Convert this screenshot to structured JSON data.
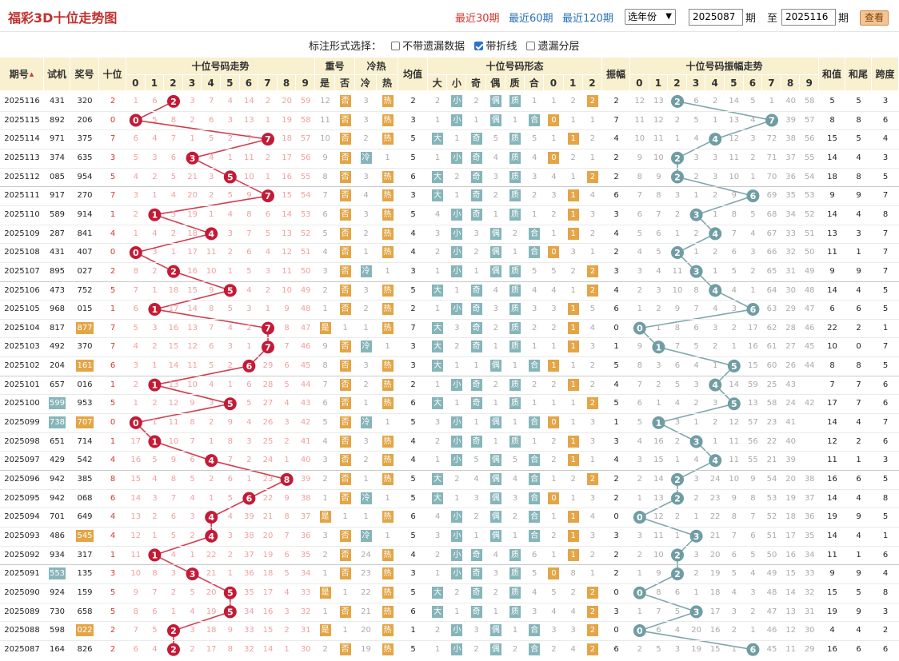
{
  "header": {
    "title": "福彩3D十位走势图",
    "nav": [
      "最近30期",
      "最近60期",
      "最近120期"
    ],
    "year_select": "选年份",
    "from": "2025087",
    "from_suffix": "期",
    "to_prefix": "至",
    "to": "2025116",
    "to_suffix": "期",
    "view_button": "查看"
  },
  "options": {
    "label": "标注形式选择：",
    "items": [
      {
        "label": "不带遗漏数据",
        "checked": false
      },
      {
        "label": "带折线",
        "checked": true
      },
      {
        "label": "遗漏分层",
        "checked": false
      }
    ]
  },
  "columns": {
    "issue": "期号",
    "trial": "试机",
    "prize": "奖号",
    "tens": "十位",
    "trend": "十位号码走势",
    "repeat": "重号",
    "repeat_yes": "是",
    "repeat_no": "否",
    "coldhot": "冷热",
    "cold": "冷",
    "hot": "热",
    "avg": "均值",
    "form": "十位号码形态",
    "big": "大",
    "small": "小",
    "odd": "奇",
    "even": "偶",
    "prime": "质",
    "composite": "合",
    "amp": "振幅",
    "amptrend": "十位号码振幅走势",
    "sum": "和值",
    "tail": "和尾",
    "span": "跨度"
  },
  "colors": {
    "ball_red": "#c41a36",
    "ball_teal": "#6f9da3",
    "line_red": "#d23c4e",
    "line_teal": "#7fa6ab",
    "header_bg": "#f8f0cf"
  },
  "trend_digits": [
    "0",
    "1",
    "2",
    "3",
    "4",
    "5",
    "6",
    "7",
    "8",
    "9"
  ],
  "rows": [
    [
      "2025116",
      "431",
      "320",
      "2",
      "1 6 ● 3 7 4 14 2 20 59",
      "12 否",
      "3 热",
      "2",
      "2 小 2 偶 质 1 1 2 2",
      "2",
      "12 13 ● 6 2 14 5 1 40 58",
      "5",
      "5",
      "3",
      "",
      ""
    ],
    [
      "2025115",
      "892",
      "206",
      "0",
      "● 5 8 2 6 3 13 1 19 58",
      "11 否",
      "3 热",
      "3",
      "1 小 1 偶 1 合 0 1 1",
      "7",
      "11 12 2 5 1 13 4 ● 39 57",
      "8",
      "8",
      "6",
      "",
      ""
    ],
    [
      "2025114",
      "971",
      "375",
      "7",
      "6 4 7 1 5 2 7 ● 18 57",
      "10 否",
      "2 热",
      "5",
      "大 1 奇 5 质 5 1 1 2",
      "4",
      "10 11 1 4 ● 12 3 72 38 56",
      "15",
      "5",
      "4",
      "",
      ""
    ],
    [
      "2025113",
      "374",
      "635",
      "3",
      "5 3 6 ● 4 1 11 2 17 56",
      "9 否",
      "冷 1",
      "5",
      "1 小 奇 4 质 4 0 2 1",
      "2",
      "9 10 ● 3 3 11 2 71 37 55",
      "14",
      "4",
      "3",
      "",
      ""
    ],
    [
      "2025112",
      "085",
      "954",
      "5",
      "4 2 5 21 3 ● 10 1 16 55",
      "8 否",
      "3 热",
      "6",
      "大 2 奇 3 质 3 4 1 2",
      "2",
      "8 9 ● 2 3 10 1 70 36 54",
      "18",
      "8",
      "5",
      "",
      ""
    ],
    [
      "2025111",
      "917",
      "270",
      "7",
      "3 1 4 20 2 5 9 ● 15 54",
      "7 否",
      "4 热",
      "3",
      "大 1 奇 2 质 2 3 1 4",
      "6",
      "7 8 3 1 2 9 ● 69 35 53",
      "9",
      "9",
      "7",
      "",
      ""
    ],
    [
      "2025110",
      "589",
      "914",
      "1",
      "2 ● 3 19 1 4 8 6 14 53",
      "6 否",
      "3 热",
      "5",
      "4 小 奇 1 质 1 2 1 3",
      "3",
      "6 7 2 ● 1 8 5 68 34 52",
      "14",
      "4",
      "8",
      "",
      ""
    ],
    [
      "2025109",
      "287",
      "841",
      "4",
      "1 4 2 18 ● 3 7 5 13 52",
      "5 否",
      "2 热",
      "4",
      "3 小 3 偶 2 合 1 1 2",
      "4",
      "5 6 1 2 ● 7 4 67 33 51",
      "13",
      "3",
      "7",
      "",
      ""
    ],
    [
      "2025108",
      "431",
      "407",
      "0",
      "● 3 1 17 11 2 6 4 12 51",
      "4 否",
      "1 热",
      "4",
      "2 小 2 偶 1 合 0 3 1",
      "2",
      "4 5 ● 1 2 6 3 66 32 50",
      "11",
      "1",
      "7",
      "",
      ""
    ],
    [
      "2025107",
      "895",
      "027",
      "2",
      "8 2 ● 16 10 1 5 3 11 50",
      "3 否",
      "冷 1",
      "3",
      "1 小 1 偶 质 5 5 2 2",
      "3",
      "3 4 11 ● 1 5 2 65 31 49",
      "9",
      "9",
      "7",
      "",
      ""
    ],
    [
      "2025106",
      "473",
      "752",
      "5",
      "7 1 18 15 9 ● 4 2 10 49",
      "2 否",
      "3 热",
      "5",
      "大 1 奇 4 质 4 4 1 2",
      "4",
      "2 3 10 8 ● 4 1 64 30 48",
      "14",
      "4",
      "5",
      "",
      ""
    ],
    [
      "2025105",
      "968",
      "015",
      "1",
      "6 ● 17 14 8 5 3 1 9 48",
      "1 否",
      "2 热",
      "2",
      "1 小 奇 3 质 3 3 1 5",
      "6",
      "1 2 9 7 4 3 ● 63 29 47",
      "6",
      "6",
      "5",
      "",
      ""
    ],
    [
      "2025104",
      "817",
      "877",
      "7",
      "5 3 16 13 7 4 2 ● 8 47",
      "是 1",
      "1 热",
      "7",
      "大 3 奇 2 质 2 2 1 4",
      "0",
      "● 1 8 6 3 2 17 62 28 46",
      "22",
      "2",
      "1",
      "1",
      ""
    ],
    [
      "2025103",
      "492",
      "370",
      "7",
      "4 2 15 12 6 3 1 ● 7 46",
      "9 否",
      "冷 1",
      "3",
      "大 2 奇 1 质 1 1 1 3",
      "1",
      "9 ● 7 5 2 1 16 61 27 45",
      "10",
      "0",
      "7",
      "",
      ""
    ],
    [
      "2025102",
      "204",
      "161",
      "6",
      "3 1 14 11 5 2 ● 29 6 45",
      "8 否",
      "3 热",
      "3",
      "大 1 1 偶 1 合 1 1 2",
      "5",
      "8 3 6 4 1 ● 15 60 26 44",
      "8",
      "8",
      "5",
      "",
      ""
    ],
    [
      "2025101",
      "657",
      "016",
      "1",
      "2 ● 13 10 4 1 6 28 5 44",
      "7 否",
      "2 热",
      "2",
      "1 小 奇 2 质 2 2 1 2",
      "4",
      "7 2 5 3 ● 14 59 25 43",
      "7",
      "7",
      "6",
      "",
      ""
    ],
    [
      "2025100",
      "599",
      "953",
      "5",
      "1 2 12 9 3 ● 5 27 4 43",
      "6 否",
      "1 热",
      "6",
      "大 1 奇 1 质 1 1 1 2",
      "5",
      "6 1 4 2 3 ● 13 58 24 42",
      "17",
      "7",
      "6",
      "1",
      ""
    ],
    [
      "2025099",
      "738",
      "707",
      "0",
      "● 1 11 8 2 9 4 26 3 42",
      "5 否",
      "冷 1",
      "5",
      "3 小 1 偶 1 合 0 1 3",
      "1",
      "5 ● 3 1 2 12 57 23 41",
      "14",
      "4",
      "7",
      "",
      "1"
    ],
    [
      "2025098",
      "651",
      "714",
      "1",
      "17 ● 10 7 1 8 3 25 2 41",
      "4 否",
      "3 热",
      "4",
      "2 小 奇 1 质 1 2 1 3",
      "3",
      "4 16 2 ● 1 11 56 22 40",
      "12",
      "2",
      "6",
      "",
      ""
    ],
    [
      "2025097",
      "429",
      "542",
      "4",
      "16 5 9 6 ● 7 2 24 1 40",
      "3 否",
      "2 热",
      "4",
      "1 小 5 偶 5 合 2 1 1",
      "4",
      "3 15 1 4 ● 11 55 21 39",
      "11",
      "1",
      "3",
      "",
      ""
    ],
    [
      "2025096",
      "942",
      "385",
      "8",
      "15 4 8 5 2 6 1 23 ● 39",
      "2 否",
      "1 热",
      "5",
      "大 2 4 偶 4 合 1 2 2",
      "2",
      "2 14 ● 3 24 10 9 54 20 38",
      "16",
      "6",
      "5",
      "",
      ""
    ],
    [
      "2025095",
      "942",
      "068",
      "6",
      "14 3 7 4 1 5 ● 22 9 38",
      "1 否",
      "冷 1",
      "5",
      "大 1 3 偶 3 合 0 1 3",
      "2",
      "1 13 ● 2 23 9 8 53 19 37",
      "14",
      "4",
      "8",
      "",
      ""
    ],
    [
      "2025094",
      "701",
      "649",
      "4",
      "13 2 6 3 ● 4 39 21 8 37",
      "是 1",
      "1 热",
      "6",
      "4 小 2 偶 2 合 1 1 4",
      "0",
      "● 12 2 1 22 8 7 52 18 36",
      "19",
      "9",
      "5",
      "",
      ""
    ],
    [
      "2025093",
      "486",
      "545",
      "4",
      "12 1 5 2 ● 3 38 20 7 36",
      "3 否",
      "冷 1",
      "5",
      "3 小 1 偶 1 合 2 1 3",
      "3",
      "3 11 1 ● 21 7 6 51 17 35",
      "14",
      "4",
      "1",
      "1",
      ""
    ],
    [
      "2025092",
      "934",
      "317",
      "1",
      "11 ● 4 1 22 2 37 19 6 35",
      "2 否",
      "24 热",
      "4",
      "2 小 奇 4 质 6 1 1 2",
      "2",
      "2 10 ● 3 20 6 5 50 16 34",
      "11",
      "1",
      "6",
      "",
      ""
    ],
    [
      "2025091",
      "553",
      "135",
      "3",
      "10 8 3 ● 21 1 36 18 5 34",
      "1 否",
      "23 热",
      "3",
      "1 小 奇 3 质 5 0 8 1",
      "2",
      "1 9 ● 2 19 5 4 49 15 33",
      "9",
      "9",
      "4",
      "1",
      ""
    ],
    [
      "2025090",
      "924",
      "159",
      "5",
      "9 7 2 5 20 ● 35 17 4 33",
      "是 1",
      "22 热",
      "5",
      "大 2 奇 2 质 4 5 2 2",
      "0",
      "● 8 6 1 18 4 3 48 14 32",
      "15",
      "5",
      "8",
      "",
      ""
    ],
    [
      "2025089",
      "730",
      "658",
      "5",
      "8 6 1 4 19 ● 34 16 3 32",
      "1 否",
      "21 热",
      "6",
      "大 1 奇 1 质 3 4 4 2",
      "3",
      "1 7 5 ● 17 3 2 47 13 31",
      "19",
      "9",
      "3",
      "",
      ""
    ],
    [
      "2025088",
      "598",
      "022",
      "2",
      "7 5 ● 3 18 9 33 15 2 31",
      "是 1",
      "20 热",
      "1",
      "2 小 3 偶 1 合 3 3 2",
      "0",
      "● 6 4 20 16 2 1 46 12 30",
      "4",
      "4",
      "2",
      "",
      ""
    ],
    [
      "2025087",
      "164",
      "826",
      "2",
      "6 4 ● 2 17 8 32 14 1 30",
      "2 否",
      "19 热",
      "5",
      "1 小 2 偶 2 合 2 4 2",
      "6",
      "2 5 3 19 15 1 ● 45 11 29",
      "16",
      "6",
      "6",
      "",
      ""
    ]
  ]
}
